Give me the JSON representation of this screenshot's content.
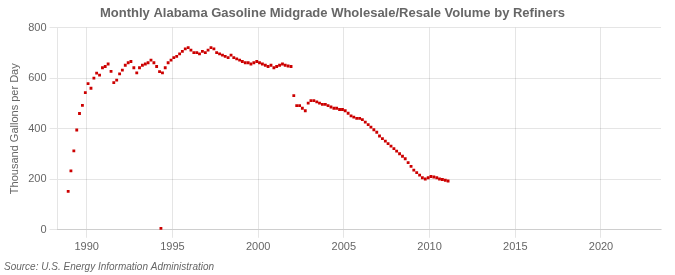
{
  "chart_data": {
    "type": "scatter",
    "title": "Monthly Alabama Gasoline Midgrade Wholesale/Resale Volume by Refiners",
    "ylabel": "Thousand Gallons per Day",
    "annotations": [
      "Source: U.S. Energy Information Administration"
    ],
    "color": "#cc0000",
    "marker": "square",
    "grid": true,
    "xlim": [
      1988.3,
      2023.5
    ],
    "ylim": [
      0,
      800
    ],
    "xticks": [
      1990,
      1995,
      2000,
      2005,
      2010,
      2015,
      2020
    ],
    "yticks": [
      0,
      200,
      400,
      600,
      800
    ],
    "x": [
      1988.92,
      1989.08,
      1989.25,
      1989.42,
      1989.58,
      1989.75,
      1989.92,
      1990.08,
      1990.25,
      1990.42,
      1990.58,
      1990.75,
      1990.92,
      1991.08,
      1991.25,
      1991.42,
      1991.58,
      1991.75,
      1991.92,
      1992.08,
      1992.25,
      1992.42,
      1992.58,
      1992.75,
      1992.92,
      1993.08,
      1993.25,
      1993.42,
      1993.58,
      1993.75,
      1993.92,
      1994.08,
      1994.25,
      1994.42,
      1994.58,
      1994.75,
      1994.92,
      1995.08,
      1995.25,
      1995.42,
      1995.58,
      1995.75,
      1995.92,
      1996.08,
      1996.25,
      1994.33,
      1996.42,
      1996.58,
      1996.75,
      1996.92,
      1997.08,
      1997.25,
      1997.42,
      1997.58,
      1997.75,
      1997.92,
      1998.08,
      1998.25,
      1998.42,
      1998.58,
      1998.75,
      1998.92,
      1999.08,
      1999.25,
      1999.42,
      1999.58,
      1999.75,
      1999.92,
      2000.08,
      2000.25,
      2000.42,
      2000.58,
      2000.75,
      2000.92,
      2001.08,
      2001.25,
      2001.42,
      2001.58,
      2001.75,
      2001.92,
      2002.08,
      2002.25,
      2002.42,
      2002.58,
      2002.75,
      2002.92,
      2003.08,
      2003.25,
      2003.42,
      2003.58,
      2003.75,
      2003.92,
      2004.08,
      2004.25,
      2004.42,
      2004.58,
      2004.75,
      2004.92,
      2005.08,
      2005.25,
      2005.42,
      2005.58,
      2005.75,
      2005.92,
      2006.08,
      2006.25,
      2006.42,
      2006.58,
      2006.75,
      2006.92,
      2007.08,
      2007.25,
      2007.42,
      2007.58,
      2007.75,
      2007.92,
      2008.08,
      2008.25,
      2008.42,
      2008.58,
      2008.75,
      2008.92,
      2009.08,
      2009.25,
      2009.42,
      2009.58,
      2009.75,
      2009.92,
      2010.08,
      2010.25,
      2010.42,
      2010.58,
      2010.75,
      2010.92,
      2011.08
    ],
    "values": [
      152,
      233,
      312,
      395,
      460,
      492,
      543,
      578,
      560,
      600,
      620,
      612,
      641,
      646,
      656,
      627,
      582,
      592,
      617,
      632,
      651,
      661,
      666,
      641,
      621,
      641,
      651,
      656,
      661,
      671,
      661,
      646,
      626,
      621,
      641,
      661,
      671,
      681,
      686,
      696,
      706,
      716,
      721,
      711,
      701,
      5,
      701,
      696,
      706,
      701,
      711,
      721,
      716,
      701,
      696,
      691,
      686,
      681,
      691,
      681,
      676,
      671,
      666,
      661,
      661,
      656,
      661,
      666,
      661,
      656,
      651,
      646,
      651,
      641,
      646,
      651,
      656,
      651,
      648,
      646,
      531,
      491,
      491,
      481,
      471,
      501,
      511,
      511,
      506,
      501,
      496,
      496,
      491,
      486,
      481,
      481,
      476,
      476,
      471,
      461,
      451,
      446,
      441,
      441,
      436,
      426,
      416,
      406,
      396,
      386,
      371,
      361,
      351,
      341,
      331,
      321,
      311,
      301,
      291,
      281,
      266,
      251,
      236,
      226,
      216,
      206,
      201,
      206,
      211,
      209,
      206,
      201,
      199,
      196,
      193
    ]
  }
}
